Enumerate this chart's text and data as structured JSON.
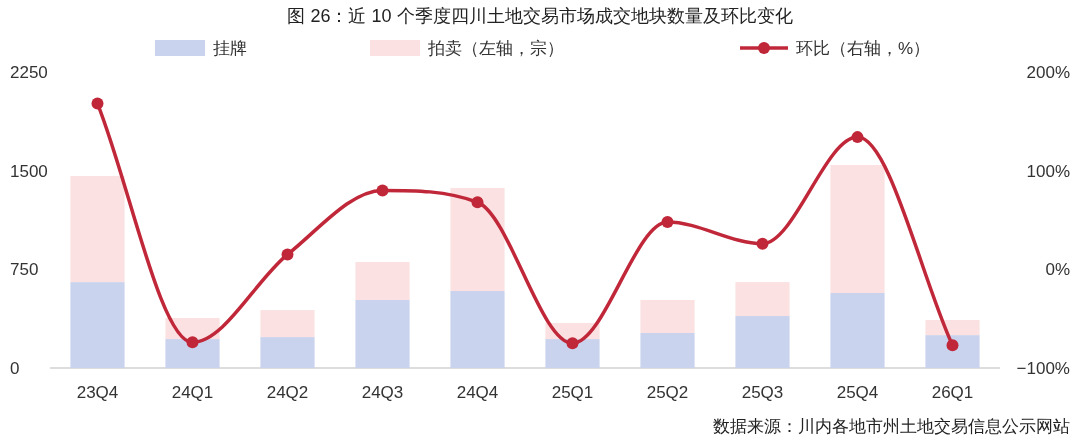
{
  "chart_data": {
    "type": "bar",
    "title": "图 26：近 10 个季度四川土地交易市场成交地块数量及环比变化",
    "categories": [
      "23Q4",
      "24Q1",
      "24Q2",
      "24Q3",
      "24Q4",
      "25Q1",
      "25Q2",
      "25Q3",
      "25Q4",
      "26Q1"
    ],
    "stacked": true,
    "series": [
      {
        "name": "挂牌",
        "color": "#c9d3ee",
        "values": [
          653,
          220,
          235,
          517,
          585,
          220,
          266,
          395,
          570,
          250
        ]
      },
      {
        "name": "拍卖（左轴，宗）",
        "color": "#fbe1e1",
        "values": [
          806,
          160,
          205,
          288,
          783,
          122,
          251,
          258,
          973,
          115
        ]
      },
      {
        "name": "环比（右轴，%）",
        "type": "line",
        "axis": "y2",
        "color": "#c0283a",
        "values": [
          168,
          -74,
          15,
          80,
          68,
          -75,
          48,
          26,
          134,
          -77
        ]
      }
    ],
    "marker": "circle",
    "ylim": [
      0,
      2250
    ],
    "yticks": [
      0,
      750,
      1500,
      2250
    ],
    "y2lim": [
      -100,
      200
    ],
    "y2ticks": [
      {
        "value": -100,
        "label": "−100%"
      },
      {
        "value": 0,
        "label": "0%"
      },
      {
        "value": 100,
        "label": "100%"
      },
      {
        "value": 200,
        "label": "200%"
      }
    ],
    "grid": false,
    "legend": "top",
    "annotations": [
      "数据来源：川内各地市州土地交易信息公示网站"
    ]
  }
}
